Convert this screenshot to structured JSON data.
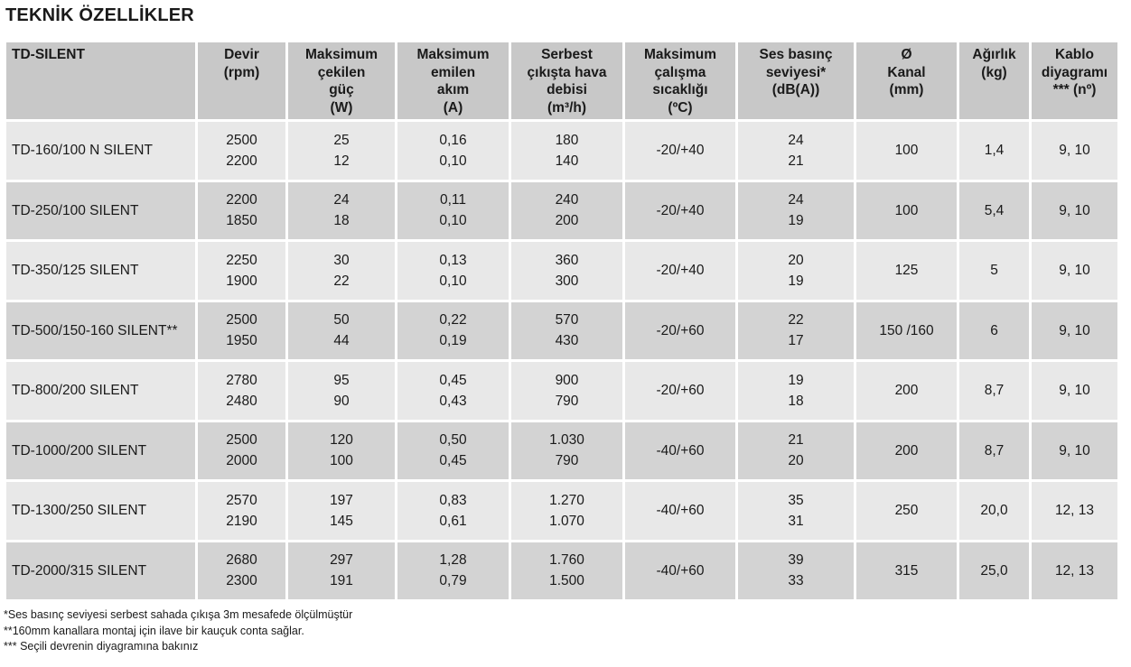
{
  "title": "TEKNİK ÖZELLİKLER",
  "headers": [
    [
      "TD-SILENT"
    ],
    [
      "Devir",
      "(rpm)"
    ],
    [
      "Maksimum",
      "çekilen",
      "güç",
      "(W)"
    ],
    [
      "Maksimum",
      "emilen",
      "akım",
      "(A)"
    ],
    [
      "Serbest",
      "çıkışta hava",
      "debisi",
      "(m³/h)"
    ],
    [
      "Maksimum",
      "çalışma",
      "sıcaklığı",
      "(ºC)"
    ],
    [
      "Ses basınç",
      "seviyesi*",
      "(dB(A))"
    ],
    [
      "Ø",
      "Kanal",
      "(mm)"
    ],
    [
      "Ağırlık",
      "(kg)"
    ],
    [
      "Kablo",
      "diyagramı",
      "*** (nº)"
    ]
  ],
  "rows": [
    {
      "model": "TD-160/100 N SILENT",
      "rpm": [
        "2500",
        "2200"
      ],
      "power": [
        "25",
        "12"
      ],
      "current": [
        "0,16",
        "0,10"
      ],
      "airflow": [
        "180",
        "140"
      ],
      "temp": "-20/+40",
      "noise": [
        "24",
        "21"
      ],
      "duct": "100",
      "weight": "1,4",
      "diagram": "9, 10"
    },
    {
      "model": "TD-250/100 SILENT",
      "rpm": [
        "2200",
        "1850"
      ],
      "power": [
        "24",
        "18"
      ],
      "current": [
        "0,11",
        "0,10"
      ],
      "airflow": [
        "240",
        "200"
      ],
      "temp": "-20/+40",
      "noise": [
        "24",
        "19"
      ],
      "duct": "100",
      "weight": "5,4",
      "diagram": "9, 10"
    },
    {
      "model": "TD-350/125 SILENT",
      "rpm": [
        "2250",
        "1900"
      ],
      "power": [
        "30",
        "22"
      ],
      "current": [
        "0,13",
        "0,10"
      ],
      "airflow": [
        "360",
        "300"
      ],
      "temp": "-20/+40",
      "noise": [
        "20",
        "19"
      ],
      "duct": "125",
      "weight": "5",
      "diagram": "9, 10"
    },
    {
      "model": "TD-500/150-160 SILENT**",
      "rpm": [
        "2500",
        "1950"
      ],
      "power": [
        "50",
        "44"
      ],
      "current": [
        "0,22",
        "0,19"
      ],
      "airflow": [
        "570",
        "430"
      ],
      "temp": "-20/+60",
      "noise": [
        "22",
        "17"
      ],
      "duct": "150 /160",
      "weight": "6",
      "diagram": "9, 10"
    },
    {
      "model": "TD-800/200 SILENT",
      "rpm": [
        "2780",
        "2480"
      ],
      "power": [
        "95",
        "90"
      ],
      "current": [
        "0,45",
        "0,43"
      ],
      "airflow": [
        "900",
        "790"
      ],
      "temp": "-20/+60",
      "noise": [
        "19",
        "18"
      ],
      "duct": "200",
      "weight": "8,7",
      "diagram": "9, 10"
    },
    {
      "model": "TD-1000/200 SILENT",
      "rpm": [
        "2500",
        "2000"
      ],
      "power": [
        "120",
        "100"
      ],
      "current": [
        "0,50",
        "0,45"
      ],
      "airflow": [
        "1.030",
        "790"
      ],
      "temp": "-40/+60",
      "noise": [
        "21",
        "20"
      ],
      "duct": "200",
      "weight": "8,7",
      "diagram": "9, 10"
    },
    {
      "model": "TD-1300/250 SILENT",
      "rpm": [
        "2570",
        "2190"
      ],
      "power": [
        "197",
        "145"
      ],
      "current": [
        "0,83",
        "0,61"
      ],
      "airflow": [
        "1.270",
        "1.070"
      ],
      "temp": "-40/+60",
      "noise": [
        "35",
        "31"
      ],
      "duct": "250",
      "weight": "20,0",
      "diagram": "12, 13"
    },
    {
      "model": "TD-2000/315 SILENT",
      "rpm": [
        "2680",
        "2300"
      ],
      "power": [
        "297",
        "191"
      ],
      "current": [
        "1,28",
        "0,79"
      ],
      "airflow": [
        "1.760",
        "1.500"
      ],
      "temp": "-40/+60",
      "noise": [
        "39",
        "33"
      ],
      "duct": "315",
      "weight": "25,0",
      "diagram": "12, 13"
    }
  ],
  "footnotes": [
    "*Ses basınç seviyesi serbest sahada çıkışa 3m mesafede ölçülmüştür",
    "**160mm kanallara montaj için ilave bir kauçuk conta sağlar.",
    "*** Seçili devrenin diyagramına bakınız"
  ]
}
